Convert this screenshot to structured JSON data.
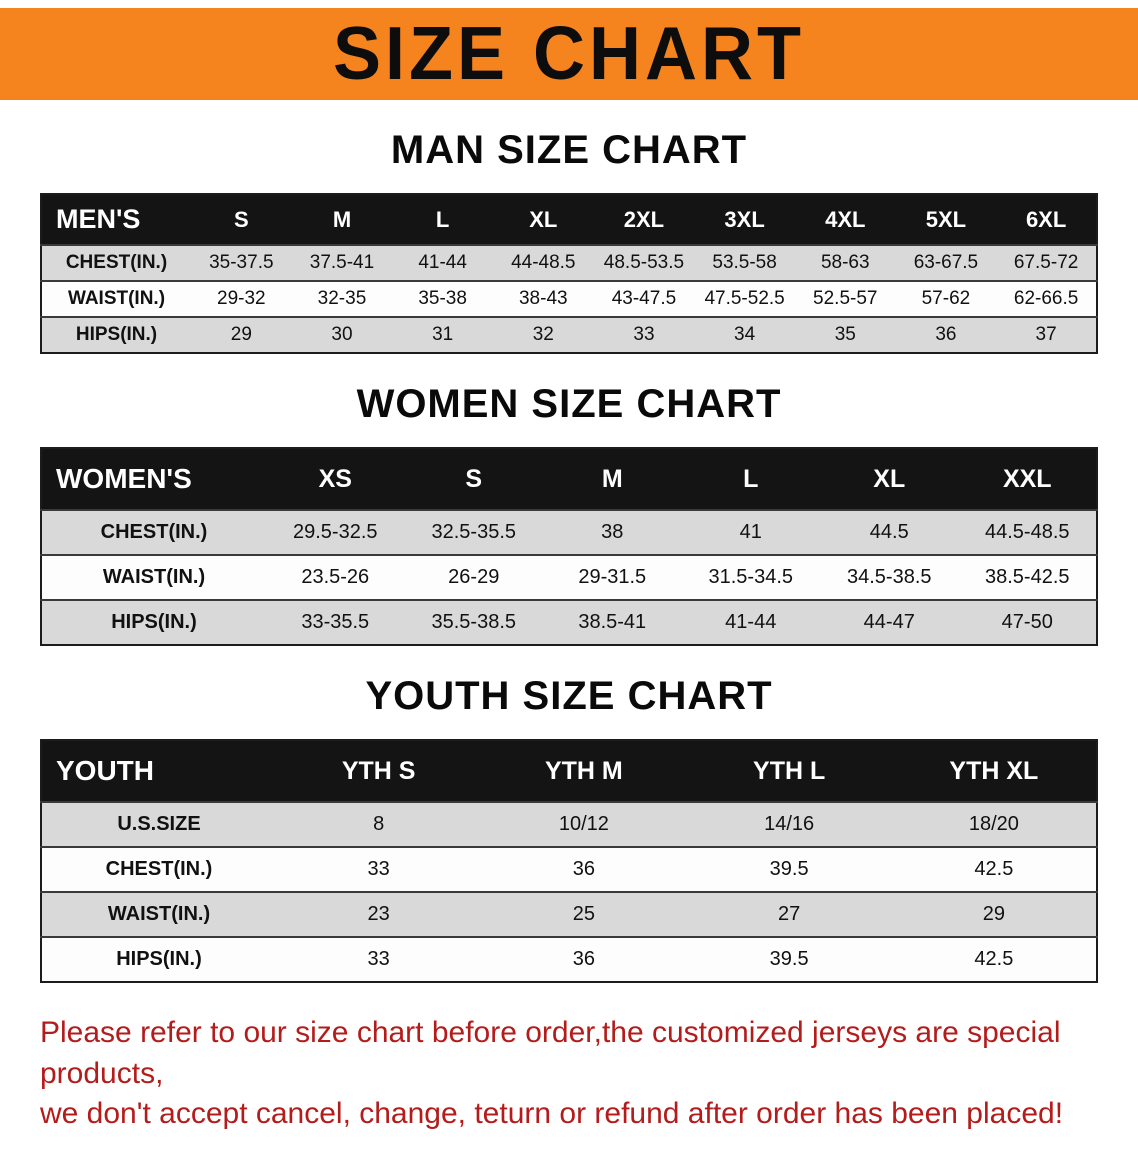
{
  "banner": {
    "title": "SIZE CHART",
    "bg_color": "#f5831e"
  },
  "tables": [
    {
      "id": "men",
      "title": "MAN SIZE CHART",
      "corner_label": "MEN'S",
      "columns": [
        "S",
        "M",
        "L",
        "XL",
        "2XL",
        "3XL",
        "4XL",
        "5XL",
        "6XL"
      ],
      "rows": [
        {
          "label": "CHEST(IN.)",
          "values": [
            "35-37.5",
            "37.5-41",
            "41-44",
            "44-48.5",
            "48.5-53.5",
            "53.5-58",
            "58-63",
            "63-67.5",
            "67.5-72"
          ]
        },
        {
          "label": "WAIST(IN.)",
          "values": [
            "29-32",
            "32-35",
            "35-38",
            "38-43",
            "43-47.5",
            "47.5-52.5",
            "52.5-57",
            "57-62",
            "62-66.5"
          ]
        },
        {
          "label": "HIPS(IN.)",
          "values": [
            "29",
            "30",
            "31",
            "32",
            "33",
            "34",
            "35",
            "36",
            "37"
          ]
        }
      ]
    },
    {
      "id": "women",
      "title": "WOMEN SIZE CHART",
      "corner_label": "WOMEN'S",
      "columns": [
        "XS",
        "S",
        "M",
        "L",
        "XL",
        "XXL"
      ],
      "rows": [
        {
          "label": "CHEST(IN.)",
          "values": [
            "29.5-32.5",
            "32.5-35.5",
            "38",
            "41",
            "44.5",
            "44.5-48.5"
          ]
        },
        {
          "label": "WAIST(IN.)",
          "values": [
            "23.5-26",
            "26-29",
            "29-31.5",
            "31.5-34.5",
            "34.5-38.5",
            "38.5-42.5"
          ]
        },
        {
          "label": "HIPS(IN.)",
          "values": [
            "33-35.5",
            "35.5-38.5",
            "38.5-41",
            "41-44",
            "44-47",
            "47-50"
          ]
        }
      ]
    },
    {
      "id": "youth",
      "title": "YOUTH SIZE CHART",
      "corner_label": "YOUTH",
      "columns": [
        "YTH S",
        "YTH M",
        "YTH L",
        "YTH XL"
      ],
      "rows": [
        {
          "label": "U.S.SIZE",
          "values": [
            "8",
            "10/12",
            "14/16",
            "18/20"
          ]
        },
        {
          "label": "CHEST(IN.)",
          "values": [
            "33",
            "36",
            "39.5",
            "42.5"
          ]
        },
        {
          "label": "WAIST(IN.)",
          "values": [
            "23",
            "25",
            "27",
            "29"
          ]
        },
        {
          "label": "HIPS(IN.)",
          "values": [
            "33",
            "36",
            "39.5",
            "42.5"
          ]
        }
      ]
    }
  ],
  "disclaimer": {
    "line1": "Please refer to our size chart before order,the customized jerseys are special products,",
    "line2": "we don't accept cancel, change, teturn or refund after order has been placed!",
    "color": "#b41c1c"
  }
}
